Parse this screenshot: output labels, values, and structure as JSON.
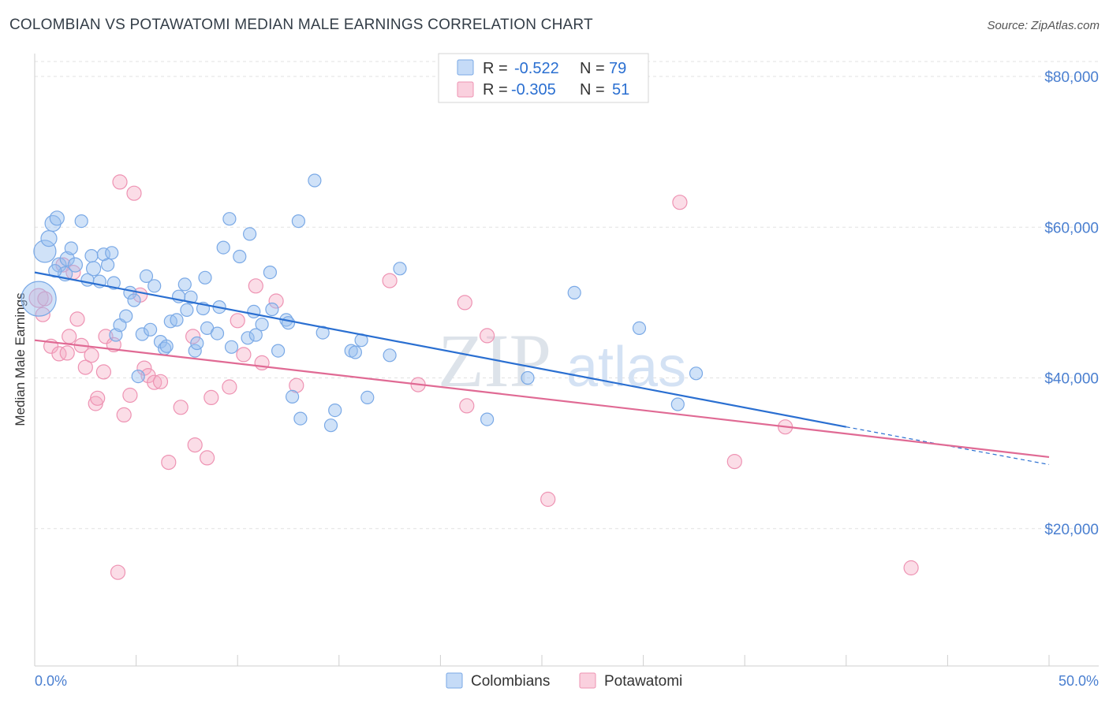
{
  "title": "COLOMBIAN VS POTAWATOMI MEDIAN MALE EARNINGS CORRELATION CHART",
  "source": "Source: ZipAtlas.com",
  "watermark": {
    "zip": "ZIP",
    "atlas": "atlas"
  },
  "colors": {
    "colombians": "#7aa9e6",
    "colombians_fill": "rgba(150,190,240,0.45)",
    "colombians_line": "#2a6fd1",
    "potawatomi": "#ee93b3",
    "potawatomi_fill": "rgba(245,170,195,0.40)",
    "potawatomi_line": "#e06a94",
    "axis_text": "#4a7fd0"
  },
  "legend": {
    "rows": [
      {
        "r_label": "R =",
        "r_value": "-0.522",
        "n_label": "N =",
        "n_value": "79"
      },
      {
        "r_label": "R =",
        "r_value": "-0.305",
        "n_label": "N =",
        "n_value": "51"
      }
    ]
  },
  "bottom_legend": {
    "colombians": "Colombians",
    "potawatomi": "Potawatomi"
  },
  "chart_data": {
    "type": "scatter",
    "xlabel": "",
    "ylabel": "Median Male Earnings",
    "xlim": [
      0,
      50
    ],
    "ylim": [
      0,
      82000
    ],
    "x_tick_labels": [
      "0.0%",
      "50.0%"
    ],
    "y_ticks": [
      20000,
      40000,
      60000,
      80000
    ],
    "y_tick_labels": [
      "$20,000",
      "$40,000",
      "$60,000",
      "$80,000"
    ],
    "grid": true,
    "series": [
      {
        "name": "Colombians",
        "trend": {
          "x": [
            0,
            40
          ],
          "y": [
            54000,
            33500
          ],
          "dashed_extension_to": [
            50,
            28500
          ]
        },
        "points": [
          [
            0.2,
            50500,
            22
          ],
          [
            0.5,
            56800,
            14
          ],
          [
            0.7,
            58500,
            10
          ],
          [
            0.9,
            60500,
            10
          ],
          [
            1.1,
            61200,
            9
          ],
          [
            1.2,
            55000,
            9
          ],
          [
            1.5,
            53800,
            9
          ],
          [
            1.6,
            55800,
            9
          ],
          [
            1.8,
            57200,
            8
          ],
          [
            2.0,
            55000,
            9
          ],
          [
            2.3,
            60800,
            8
          ],
          [
            2.6,
            53000,
            8
          ],
          [
            2.8,
            56200,
            8
          ],
          [
            2.9,
            54500,
            9
          ],
          [
            3.2,
            52800,
            8
          ],
          [
            3.4,
            56400,
            8
          ],
          [
            3.6,
            55000,
            8
          ],
          [
            3.8,
            56600,
            8
          ],
          [
            3.9,
            52600,
            8
          ],
          [
            4.0,
            45700,
            8
          ],
          [
            4.2,
            47000,
            8
          ],
          [
            4.5,
            48200,
            8
          ],
          [
            4.7,
            51300,
            8
          ],
          [
            4.9,
            50300,
            8
          ],
          [
            5.1,
            40200,
            8
          ],
          [
            5.3,
            45800,
            8
          ],
          [
            5.5,
            53500,
            8
          ],
          [
            5.7,
            46400,
            8
          ],
          [
            5.9,
            52200,
            8
          ],
          [
            6.2,
            44800,
            8
          ],
          [
            6.4,
            43900,
            8
          ],
          [
            6.5,
            44200,
            8
          ],
          [
            6.7,
            47500,
            8
          ],
          [
            7.0,
            47700,
            8
          ],
          [
            7.1,
            50800,
            8
          ],
          [
            7.4,
            52400,
            8
          ],
          [
            7.5,
            49000,
            8
          ],
          [
            7.7,
            50700,
            8
          ],
          [
            7.9,
            43600,
            8
          ],
          [
            8.0,
            44600,
            8
          ],
          [
            8.3,
            49200,
            8
          ],
          [
            8.4,
            53300,
            8
          ],
          [
            8.5,
            46600,
            8
          ],
          [
            9.0,
            45900,
            8
          ],
          [
            9.1,
            49400,
            8
          ],
          [
            9.3,
            57300,
            8
          ],
          [
            9.6,
            61100,
            8
          ],
          [
            9.7,
            44100,
            8
          ],
          [
            10.1,
            56100,
            8
          ],
          [
            10.5,
            45300,
            8
          ],
          [
            10.6,
            59100,
            8
          ],
          [
            10.8,
            48800,
            8
          ],
          [
            10.9,
            45700,
            8
          ],
          [
            11.2,
            47100,
            8
          ],
          [
            11.6,
            54000,
            8
          ],
          [
            11.7,
            49100,
            8
          ],
          [
            12.0,
            43600,
            8
          ],
          [
            12.4,
            47700,
            8
          ],
          [
            12.5,
            47300,
            8
          ],
          [
            12.7,
            37500,
            8
          ],
          [
            13.0,
            60800,
            8
          ],
          [
            13.1,
            34600,
            8
          ],
          [
            13.8,
            66200,
            8
          ],
          [
            14.2,
            46000,
            8
          ],
          [
            14.6,
            33700,
            8
          ],
          [
            14.8,
            35700,
            8
          ],
          [
            15.6,
            43600,
            8
          ],
          [
            15.8,
            43400,
            8
          ],
          [
            16.1,
            45000,
            8
          ],
          [
            16.4,
            37400,
            8
          ],
          [
            17.5,
            43000,
            8
          ],
          [
            18.0,
            54500,
            8
          ],
          [
            22.3,
            34500,
            8
          ],
          [
            24.3,
            40000,
            8
          ],
          [
            26.6,
            51300,
            8
          ],
          [
            29.8,
            46600,
            8
          ],
          [
            31.7,
            36500,
            8
          ],
          [
            32.6,
            40600,
            8
          ],
          [
            1.0,
            54200,
            8
          ]
        ]
      },
      {
        "name": "Potawatomi",
        "trend": {
          "x": [
            0,
            50
          ],
          "y": [
            45000,
            29500
          ]
        },
        "points": [
          [
            0.2,
            50600,
            12
          ],
          [
            0.4,
            48400,
            9
          ],
          [
            0.5,
            50500,
            9
          ],
          [
            0.8,
            44200,
            9
          ],
          [
            1.2,
            43200,
            9
          ],
          [
            1.4,
            55000,
            9
          ],
          [
            1.6,
            43300,
            9
          ],
          [
            1.7,
            45500,
            9
          ],
          [
            1.9,
            54000,
            9
          ],
          [
            2.1,
            47800,
            9
          ],
          [
            2.3,
            44300,
            9
          ],
          [
            2.5,
            41400,
            9
          ],
          [
            2.8,
            43000,
            9
          ],
          [
            3.0,
            36600,
            9
          ],
          [
            3.1,
            37300,
            9
          ],
          [
            3.4,
            40800,
            9
          ],
          [
            3.5,
            45500,
            9
          ],
          [
            3.9,
            44400,
            9
          ],
          [
            4.1,
            14200,
            9
          ],
          [
            4.2,
            66000,
            9
          ],
          [
            4.4,
            35100,
            9
          ],
          [
            4.7,
            37700,
            9
          ],
          [
            4.9,
            64500,
            9
          ],
          [
            5.2,
            51000,
            9
          ],
          [
            5.4,
            41300,
            9
          ],
          [
            5.6,
            40300,
            9
          ],
          [
            5.9,
            39400,
            9
          ],
          [
            6.2,
            39500,
            9
          ],
          [
            6.6,
            28800,
            9
          ],
          [
            7.2,
            36100,
            9
          ],
          [
            7.8,
            45500,
            9
          ],
          [
            7.9,
            31100,
            9
          ],
          [
            8.5,
            29400,
            9
          ],
          [
            8.7,
            37400,
            9
          ],
          [
            9.6,
            38800,
            9
          ],
          [
            10.0,
            47600,
            9
          ],
          [
            10.3,
            43100,
            9
          ],
          [
            10.9,
            52200,
            9
          ],
          [
            11.2,
            42000,
            9
          ],
          [
            11.9,
            50200,
            9
          ],
          [
            12.9,
            39000,
            9
          ],
          [
            17.5,
            52900,
            9
          ],
          [
            18.9,
            39100,
            9
          ],
          [
            21.2,
            50000,
            9
          ],
          [
            21.3,
            36300,
            9
          ],
          [
            22.3,
            45600,
            9
          ],
          [
            25.3,
            23900,
            9
          ],
          [
            31.8,
            63300,
            9
          ],
          [
            34.5,
            28900,
            9
          ],
          [
            37.0,
            33500,
            9
          ],
          [
            43.2,
            14800,
            9
          ]
        ]
      }
    ]
  }
}
